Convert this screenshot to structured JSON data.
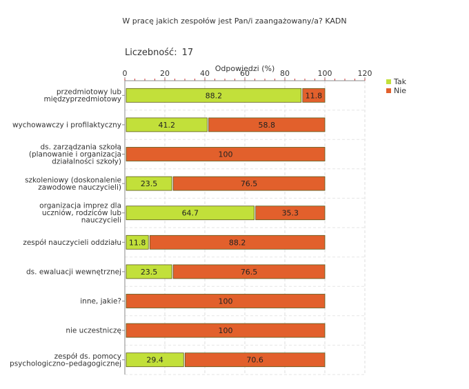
{
  "title": "W pracę jakich zespołów jest Pan/i zaangażowany/a? KADN",
  "count_label": "Liczebność:",
  "count_value": "17",
  "chart_data": {
    "type": "bar",
    "orientation": "horizontal",
    "stacked": true,
    "xlabel": "Odpowiedzi (%)",
    "xlim": [
      0,
      120
    ],
    "xticks": [
      0,
      20,
      40,
      60,
      80,
      100,
      120
    ],
    "grid": true,
    "legend_position": "top-right",
    "categories": [
      [
        "przedmiotowy lub",
        "międzyprzedmiotowy"
      ],
      [
        "wychowawczy i profilaktyczny"
      ],
      [
        "ds. zarządzania szkołą",
        "(planowanie i organizacja",
        "działalności szkoły)"
      ],
      [
        "szkoleniowy (doskonalenie",
        "zawodowe nauczycieli)"
      ],
      [
        "organizacja imprez dla",
        "uczniów, rodziców lub",
        "nauczycieli"
      ],
      [
        "zespół nauczycieli oddziału"
      ],
      [
        "ds. ewaluacji wewnętrznej"
      ],
      [
        "inne, jakie?"
      ],
      [
        "nie uczestniczę"
      ],
      [
        "zespół ds. pomocy",
        "psychologiczno–pedagogicznej"
      ]
    ],
    "series": [
      {
        "name": "Tak",
        "color": "#c2e03a",
        "values": [
          88.2,
          41.2,
          0,
          23.5,
          64.7,
          11.8,
          23.5,
          0,
          0,
          29.4
        ]
      },
      {
        "name": "Nie",
        "color": "#e2602c",
        "values": [
          11.8,
          58.8,
          100,
          76.5,
          35.3,
          88.2,
          76.5,
          100,
          100,
          70.6
        ]
      }
    ]
  }
}
